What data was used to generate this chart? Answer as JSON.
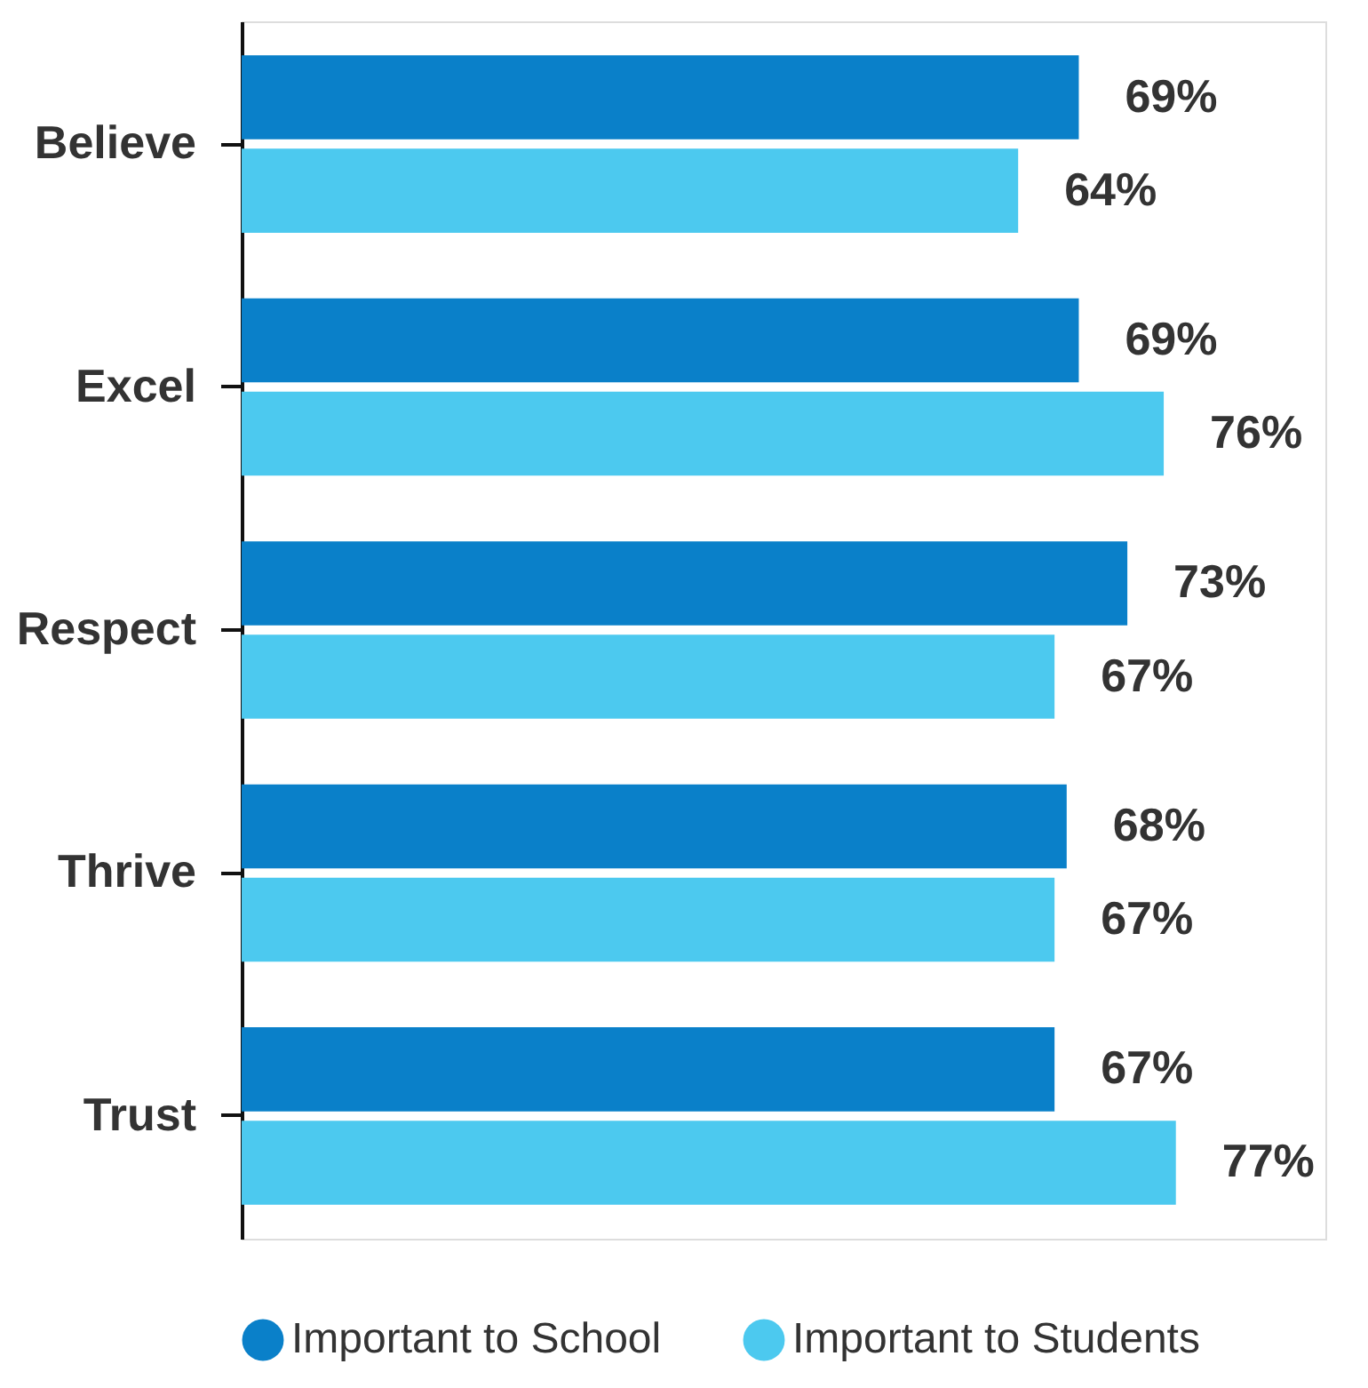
{
  "chart_data": {
    "type": "bar",
    "orientation": "horizontal",
    "categories": [
      "Believe",
      "Excel",
      "Respect",
      "Thrive",
      "Trust"
    ],
    "series": [
      {
        "name": "Important to School",
        "color": "#0a80c9",
        "values": [
          69,
          69,
          73,
          68,
          67
        ],
        "value_labels": [
          "69%",
          "69%",
          "73%",
          "68%",
          "67%"
        ]
      },
      {
        "name": "Important to Students",
        "color": "#4cc9ef",
        "values": [
          64,
          76,
          67,
          67,
          77
        ],
        "value_labels": [
          "64%",
          "76%",
          "67%",
          "67%",
          "77%"
        ]
      }
    ],
    "legend": "bottom",
    "grid": false,
    "tick_labels": "y"
  }
}
